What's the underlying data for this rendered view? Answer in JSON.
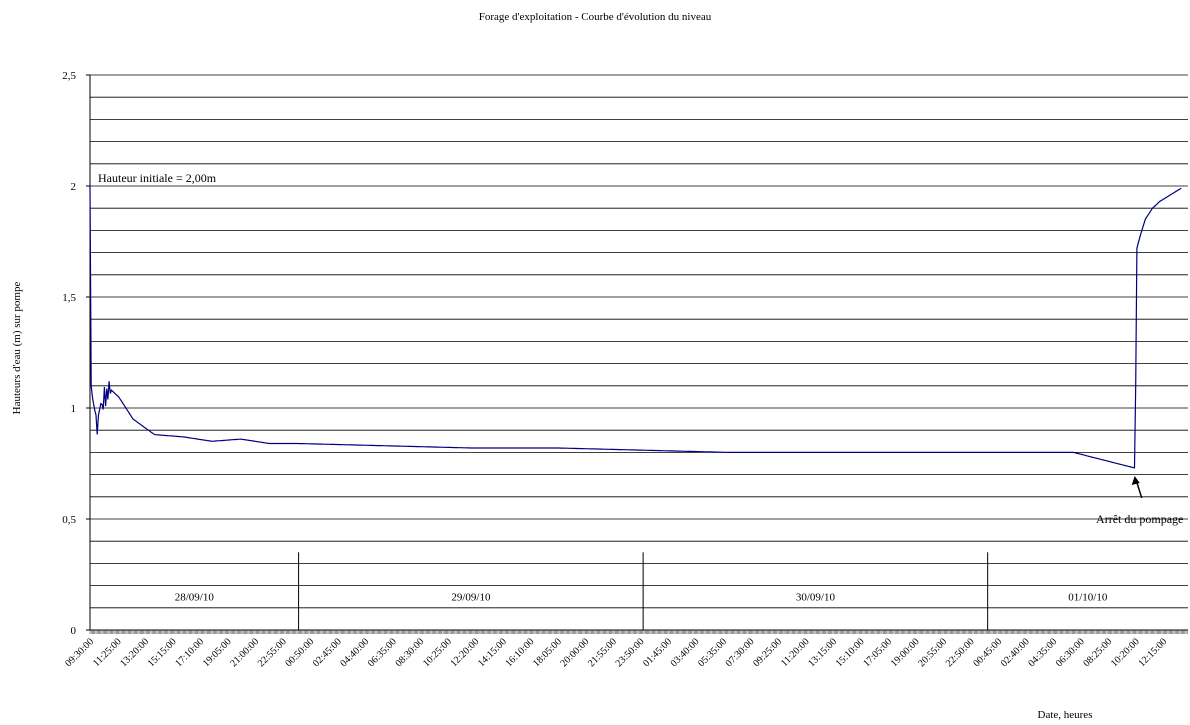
{
  "chart_data": {
    "type": "line",
    "title": "Forage d'exploitation  - Courbe d'évolution du niveau",
    "xlabel": "Date, heures",
    "ylabel": "Hauteurs d'eau (m) sur pompe",
    "ylim": [
      0,
      2.5
    ],
    "y_major_ticks": [
      {
        "value": 0,
        "label": "0"
      },
      {
        "value": 0.5,
        "label": "0,5"
      },
      {
        "value": 1,
        "label": "1"
      },
      {
        "value": 1.5,
        "label": "1,5"
      },
      {
        "value": 2,
        "label": "2"
      },
      {
        "value": 2.5,
        "label": "2,5"
      }
    ],
    "y_gridline_step": 0.1,
    "grid": true,
    "legend": "none",
    "line_color": "#000080",
    "x_tick_labels": [
      "09:30:00",
      "11:25:00",
      "13:20:00",
      "15:15:00",
      "17:10:00",
      "19:05:00",
      "21:00:00",
      "22:55:00",
      "00:50:00",
      "02:45:00",
      "04:40:00",
      "06:35:00",
      "08:30:00",
      "10:25:00",
      "12:20:00",
      "14:15:00",
      "16:10:00",
      "18:05:00",
      "20:00:00",
      "21:55:00",
      "23:50:00",
      "01:45:00",
      "03:40:00",
      "05:35:00",
      "07:30:00",
      "09:25:00",
      "11:20:00",
      "13:15:00",
      "15:10:00",
      "17:05:00",
      "19:00:00",
      "20:55:00",
      "22:50:00",
      "00:45:00",
      "02:40:00",
      "04:35:00",
      "06:30:00",
      "08:25:00",
      "10:20:00",
      "12:15:00"
    ],
    "x_tick_interval_minutes": 115,
    "sample_interval_minutes": 5,
    "start_time": "09:30:00",
    "day_groups": [
      {
        "label": "28/09/10",
        "start_tick": 0,
        "end_tick": 7.58
      },
      {
        "label": "29/09/10",
        "start_tick": 7.58,
        "end_tick": 20.1
      },
      {
        "label": "30/09/10",
        "start_tick": 20.1,
        "end_tick": 32.62
      },
      {
        "label": "01/10/10",
        "start_tick": 32.62,
        "end_tick": 39.9
      }
    ],
    "series": [
      {
        "points": [
          {
            "x": "28/09/10 09:30",
            "y": 2.0
          },
          {
            "x": "28/09/10 09:35",
            "y": 1.1
          },
          {
            "x": "28/09/10 09:45",
            "y": 1.0
          },
          {
            "x": "28/09/10 10:00",
            "y": 0.92
          },
          {
            "x": "28/09/10 10:30",
            "y": 1.05
          },
          {
            "x": "28/09/10 11:00",
            "y": 1.08
          },
          {
            "x": "28/09/10 11:30",
            "y": 1.05
          },
          {
            "x": "28/09/10 12:30",
            "y": 0.95
          },
          {
            "x": "28/09/10 14:00",
            "y": 0.88
          },
          {
            "x": "28/09/10 16:00",
            "y": 0.87
          },
          {
            "x": "28/09/10 18:00",
            "y": 0.85
          },
          {
            "x": "28/09/10 20:00",
            "y": 0.86
          },
          {
            "x": "28/09/10 22:00",
            "y": 0.84
          },
          {
            "x": "29/09/10 00:00",
            "y": 0.84
          },
          {
            "x": "29/09/10 06:00",
            "y": 0.83
          },
          {
            "x": "29/09/10 12:00",
            "y": 0.82
          },
          {
            "x": "29/09/10 18:00",
            "y": 0.82
          },
          {
            "x": "30/09/10 00:00",
            "y": 0.81
          },
          {
            "x": "30/09/10 06:00",
            "y": 0.8
          },
          {
            "x": "30/09/10 12:00",
            "y": 0.8
          },
          {
            "x": "30/09/10 18:00",
            "y": 0.8
          },
          {
            "x": "01/10/10 00:00",
            "y": 0.8
          },
          {
            "x": "01/10/10 06:00",
            "y": 0.8
          },
          {
            "x": "01/10/10 10:15",
            "y": 0.73
          },
          {
            "x": "01/10/10 10:20",
            "y": 1.1
          },
          {
            "x": "01/10/10 10:25",
            "y": 1.72
          },
          {
            "x": "01/10/10 10:40",
            "y": 1.78
          },
          {
            "x": "01/10/10 11:00",
            "y": 1.85
          },
          {
            "x": "01/10/10 11:30",
            "y": 1.9
          },
          {
            "x": "01/10/10 12:00",
            "y": 1.93
          },
          {
            "x": "01/10/10 12:30",
            "y": 1.95
          },
          {
            "x": "01/10/10 13:00",
            "y": 1.97
          },
          {
            "x": "01/10/10 13:30",
            "y": 1.99
          }
        ],
        "values_note_noise_amplitude_m": 0.06
      }
    ],
    "annotations": [
      {
        "text": "Hauteur initiale = 2,00m",
        "x": "28/09/10 09:30",
        "y": 2.0
      },
      {
        "text": "Arrêt du pompage",
        "x": "01/10/10 10:20",
        "y": 0.73
      }
    ]
  }
}
